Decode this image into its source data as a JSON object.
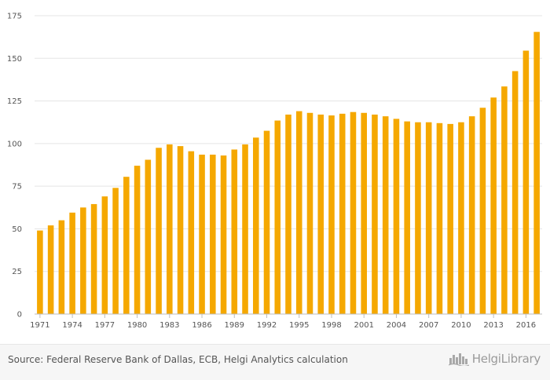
{
  "chart_data": {
    "type": "bar",
    "title": "",
    "xlabel": "",
    "ylabel": "",
    "ylim": [
      0,
      175
    ],
    "yticks": [
      0,
      25,
      50,
      75,
      100,
      125,
      150,
      175
    ],
    "grid": true,
    "bar_color": "#f5a800",
    "categories": [
      "1971",
      "1972",
      "1973",
      "1974",
      "1975",
      "1976",
      "1977",
      "1978",
      "1979",
      "1980",
      "1981",
      "1982",
      "1983",
      "1984",
      "1985",
      "1986",
      "1987",
      "1988",
      "1989",
      "1990",
      "1991",
      "1992",
      "1993",
      "1994",
      "1995",
      "1996",
      "1997",
      "1998",
      "1999",
      "2000",
      "2001",
      "2002",
      "2003",
      "2004",
      "2005",
      "2006",
      "2007",
      "2008",
      "2009",
      "2010",
      "2011",
      "2012",
      "2013",
      "2014",
      "2015",
      "2016",
      "2017"
    ],
    "xtick_labels": [
      "1971",
      "1974",
      "1977",
      "1980",
      "1983",
      "1986",
      "1989",
      "1992",
      "1995",
      "1998",
      "2001",
      "2004",
      "2007",
      "2010",
      "2013",
      "2016"
    ],
    "values": [
      49,
      52,
      55,
      59.5,
      62.5,
      64.5,
      69,
      74,
      80.5,
      87,
      90.5,
      97.5,
      99.5,
      98.5,
      95.5,
      93.5,
      93.5,
      93,
      96.5,
      99.5,
      103.5,
      107.5,
      113.5,
      117,
      119,
      118,
      117,
      116.5,
      117.5,
      118.5,
      118,
      117,
      116,
      114.5,
      113,
      112.5,
      112.5,
      112,
      111.5,
      112.5,
      116,
      121,
      127,
      133.5,
      142.5,
      154.5,
      165.5
    ]
  },
  "footer": {
    "source": "Source: Federal Reserve Bank of Dallas, ECB, Helgi Analytics calculation",
    "brand": "HelgiLibrary"
  }
}
